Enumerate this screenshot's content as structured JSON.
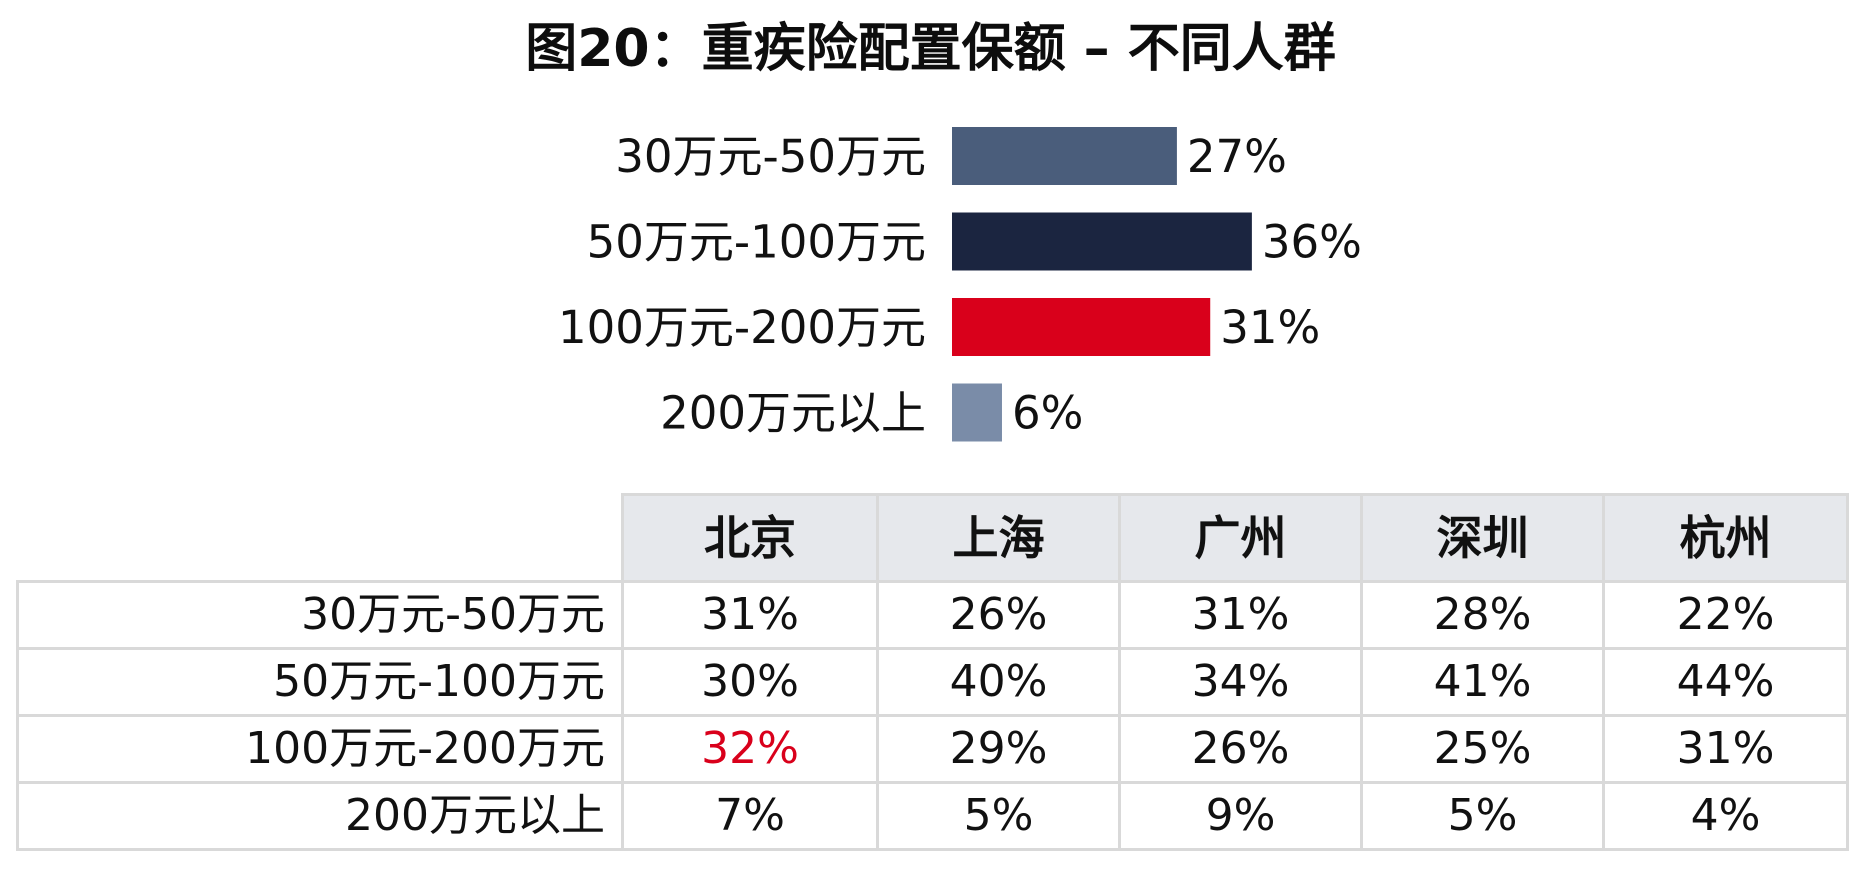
{
  "title": "图20：重疾险配置保额 – 不同人群",
  "chart_data": [
    {
      "type": "bar",
      "orientation": "horizontal",
      "categories": [
        "30万元-50万元",
        "50万元-100万元",
        "100万元-200万元",
        "200万元以上"
      ],
      "values": [
        27,
        36,
        31,
        6
      ],
      "value_labels": [
        "27%",
        "36%",
        "31%",
        "6%"
      ],
      "colors": [
        "#4a5d7b",
        "#1b2540",
        "#d9001b",
        "#7a8ca8"
      ],
      "unit": "%",
      "grid": false,
      "legend": "none"
    },
    {
      "type": "table",
      "columns": [
        "北京",
        "上海",
        "广州",
        "深圳",
        "杭州"
      ],
      "rows": [
        {
          "label": "30万元-50万元",
          "values": [
            "31%",
            "26%",
            "31%",
            "28%",
            "22%"
          ]
        },
        {
          "label": "50万元-100万元",
          "values": [
            "30%",
            "40%",
            "34%",
            "41%",
            "44%"
          ]
        },
        {
          "label": "100万元-200万元",
          "values": [
            "32%",
            "29%",
            "26%",
            "25%",
            "31%"
          ]
        },
        {
          "label": "200万元以上",
          "values": [
            "7%",
            "5%",
            "9%",
            "5%",
            "4%"
          ]
        }
      ],
      "highlight": {
        "row": 2,
        "column": 0,
        "color": "#d9001b"
      }
    }
  ]
}
